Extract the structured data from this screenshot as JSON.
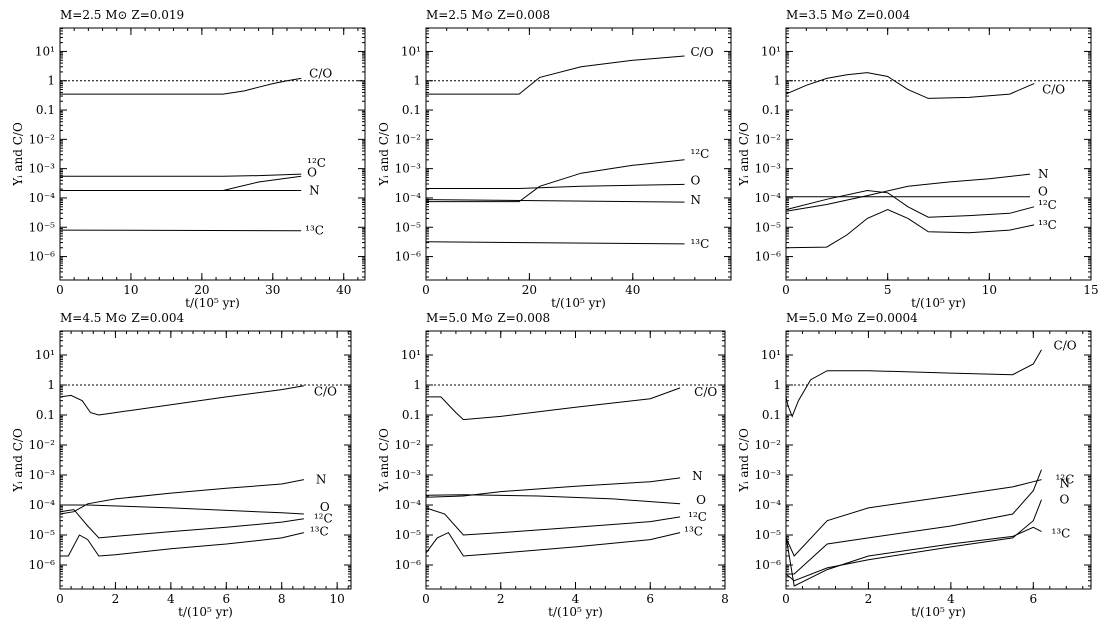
{
  "chart_data": [
    {
      "type": "line",
      "title": "M=2.5 M⊙  Z=0.019",
      "xlabel": "t/(10⁵ yr)",
      "ylabel": "Yᵢ and C/O",
      "xlim": [
        0,
        43
      ],
      "ylim_log10": [
        -6.8,
        1.8
      ],
      "yscale": "log",
      "xticks": [
        0,
        10,
        20,
        30,
        40
      ],
      "reference_line": {
        "y": 1,
        "style": "dotted"
      },
      "series": [
        {
          "name": "C/O",
          "x": [
            0,
            23,
            26,
            28,
            30,
            32,
            34
          ],
          "y": [
            0.35,
            0.35,
            0.45,
            0.6,
            0.8,
            1.0,
            1.2
          ]
        },
        {
          "name": "¹²C",
          "x": [
            0,
            23,
            28,
            34
          ],
          "y": [
            0.00055,
            0.00055,
            0.00058,
            0.00065
          ]
        },
        {
          "name": "O",
          "x": [
            0,
            23,
            28,
            34
          ],
          "y": [
            0.00018,
            0.00018,
            0.00035,
            0.00055
          ]
        },
        {
          "name": "N",
          "x": [
            0,
            34
          ],
          "y": [
            0.00018,
            0.00018
          ]
        },
        {
          "name": "¹³C",
          "x": [
            0,
            34
          ],
          "y": [
            8e-06,
            7.6e-06
          ]
        }
      ]
    },
    {
      "type": "line",
      "title": "M=2.5 M⊙  Z=0.008",
      "xlabel": "t/(10⁵ yr)",
      "ylabel": "Yᵢ and C/O",
      "xlim": [
        0,
        59
      ],
      "ylim_log10": [
        -6.8,
        1.8
      ],
      "yscale": "log",
      "xticks": [
        0,
        20,
        40
      ],
      "reference_line": {
        "y": 1,
        "style": "dotted"
      },
      "series": [
        {
          "name": "C/O",
          "x": [
            0,
            18,
            22,
            30,
            40,
            50
          ],
          "y": [
            0.35,
            0.35,
            1.3,
            3.0,
            5.0,
            7.0
          ]
        },
        {
          "name": "¹²C",
          "x": [
            0,
            18,
            22,
            30,
            40,
            50
          ],
          "y": [
            7.5e-05,
            7.5e-05,
            0.00025,
            0.0007,
            0.0013,
            0.002
          ]
        },
        {
          "name": "O",
          "x": [
            0,
            18,
            30,
            50
          ],
          "y": [
            0.00021,
            0.00021,
            0.00025,
            0.00029
          ]
        },
        {
          "name": "N",
          "x": [
            0,
            50
          ],
          "y": [
            8.8e-05,
            7.2e-05
          ]
        },
        {
          "name": "¹³C",
          "x": [
            0,
            50
          ],
          "y": [
            3.2e-06,
            2.7e-06
          ]
        }
      ]
    },
    {
      "type": "line",
      "title": "M=3.5 M⊙  Z=0.004",
      "xlabel": "t/(10⁵ yr)",
      "ylabel": "Yᵢ and C/O",
      "xlim": [
        0,
        15
      ],
      "ylim_log10": [
        -6.8,
        1.8
      ],
      "yscale": "log",
      "xticks": [
        0,
        5,
        10,
        15
      ],
      "reference_line": {
        "y": 1,
        "style": "dotted"
      },
      "series": [
        {
          "name": "C/O",
          "x": [
            0,
            1,
            2,
            3,
            4,
            5,
            6,
            7,
            9,
            11,
            12.2
          ],
          "y": [
            0.35,
            0.7,
            1.2,
            1.6,
            1.9,
            1.4,
            0.5,
            0.25,
            0.27,
            0.35,
            0.8
          ]
        },
        {
          "name": "N",
          "x": [
            0,
            2,
            4,
            6,
            8,
            10,
            12
          ],
          "y": [
            3.5e-05,
            6e-05,
            0.00012,
            0.00025,
            0.00035,
            0.00045,
            0.00065
          ]
        },
        {
          "name": "O",
          "x": [
            0,
            12
          ],
          "y": [
            0.00011,
            0.00011
          ]
        },
        {
          "name": "¹²C",
          "x": [
            0,
            2,
            4,
            5,
            6,
            7,
            9,
            11,
            12.2
          ],
          "y": [
            4e-05,
            9e-05,
            0.00018,
            0.00015,
            5e-05,
            2.2e-05,
            2.5e-05,
            3e-05,
            5e-05
          ]
        },
        {
          "name": "¹³C",
          "x": [
            0,
            2,
            3,
            4,
            5,
            6,
            7,
            9,
            11,
            12.2
          ],
          "y": [
            2e-06,
            2.1e-06,
            5.5e-06,
            2e-05,
            4e-05,
            2e-05,
            7e-06,
            6.5e-06,
            8e-06,
            1.2e-05
          ]
        }
      ]
    },
    {
      "type": "line",
      "title": "M=4.5 M⊙  Z=0.004",
      "xlabel": "t/(10⁵ yr)",
      "ylabel": "Yᵢ and C/O",
      "xlim": [
        0,
        10.5
      ],
      "ylim_log10": [
        -6.8,
        1.8
      ],
      "yscale": "log",
      "xticks": [
        0,
        2,
        4,
        6,
        8,
        10
      ],
      "reference_line": {
        "y": 1,
        "style": "dotted"
      },
      "series": [
        {
          "name": "C/O",
          "x": [
            0,
            0.4,
            0.8,
            1.1,
            1.4,
            2,
            4,
            6,
            8,
            8.8
          ],
          "y": [
            0.4,
            0.45,
            0.3,
            0.12,
            0.1,
            0.12,
            0.22,
            0.4,
            0.7,
            0.95
          ]
        },
        {
          "name": "N",
          "x": [
            0,
            0.5,
            1,
            2,
            4,
            6,
            8,
            8.8
          ],
          "y": [
            5e-05,
            6e-05,
            0.00011,
            0.00016,
            0.00025,
            0.00036,
            0.0005,
            0.0007
          ]
        },
        {
          "name": "O",
          "x": [
            0,
            1,
            4,
            8,
            8.8
          ],
          "y": [
            0.0001,
            0.0001,
            8e-05,
            5.5e-05,
            5e-05
          ]
        },
        {
          "name": "¹²C",
          "x": [
            0,
            0.5,
            1,
            1.4,
            2,
            4,
            6,
            8,
            8.8
          ],
          "y": [
            6e-05,
            7e-05,
            2e-05,
            8e-06,
            9e-06,
            1.3e-05,
            1.8e-05,
            2.7e-05,
            3.5e-05
          ]
        },
        {
          "name": "¹³C",
          "x": [
            0,
            0.3,
            0.7,
            1,
            1.4,
            2,
            4,
            6,
            8,
            8.8
          ],
          "y": [
            2e-06,
            2e-06,
            1e-05,
            7e-06,
            2e-06,
            2.2e-06,
            3.5e-06,
            5e-06,
            8e-06,
            1.2e-05
          ]
        }
      ]
    },
    {
      "type": "line",
      "title": "M=5.0 M⊙  Z=0.008",
      "xlabel": "t/(10⁵ yr)",
      "ylabel": "Yᵢ and C/O",
      "xlim": [
        0,
        8
      ],
      "ylim_log10": [
        -6.8,
        1.8
      ],
      "yscale": "log",
      "xticks": [
        0,
        2,
        4,
        6,
        8
      ],
      "reference_line": {
        "y": 1,
        "style": "dotted"
      },
      "series": [
        {
          "name": "C/O",
          "x": [
            0,
            0.4,
            0.8,
            1,
            2,
            4,
            6,
            6.8
          ],
          "y": [
            0.4,
            0.4,
            0.12,
            0.07,
            0.09,
            0.18,
            0.35,
            0.8
          ]
        },
        {
          "name": "N",
          "x": [
            0,
            1,
            2,
            4,
            6,
            6.8
          ],
          "y": [
            0.00018,
            0.0002,
            0.00028,
            0.00042,
            0.0006,
            0.0008
          ]
        },
        {
          "name": "O",
          "x": [
            0,
            1,
            3,
            5,
            6.8
          ],
          "y": [
            0.00021,
            0.00022,
            0.0002,
            0.00016,
            0.00011
          ]
        },
        {
          "name": "¹²C",
          "x": [
            0,
            0.5,
            1,
            2,
            4,
            6,
            6.8
          ],
          "y": [
            8e-05,
            5e-05,
            1e-05,
            1.2e-05,
            1.8e-05,
            2.8e-05,
            4e-05
          ]
        },
        {
          "name": "¹³C",
          "x": [
            0,
            0.3,
            0.6,
            1,
            2,
            4,
            6,
            6.8
          ],
          "y": [
            2.5e-06,
            8e-06,
            1.2e-05,
            2e-06,
            2.5e-06,
            4e-06,
            7e-06,
            1.2e-05
          ]
        }
      ]
    },
    {
      "type": "line",
      "title": "M=5.0 M⊙  Z=0.0004",
      "xlabel": "t/(10⁵ yr)",
      "ylabel": "Yᵢ and C/O",
      "xlim": [
        0,
        7.4
      ],
      "ylim_log10": [
        -6.8,
        1.8
      ],
      "yscale": "log",
      "xticks": [
        0,
        2,
        4,
        6
      ],
      "reference_line": {
        "y": 1,
        "style": "dotted"
      },
      "series": [
        {
          "name": "C/O",
          "x": [
            0,
            0.05,
            0.15,
            0.3,
            0.6,
            1,
            2,
            4,
            5.5,
            6,
            6.2
          ],
          "y": [
            0.4,
            0.2,
            0.09,
            0.3,
            1.5,
            3,
            3,
            2.5,
            2.2,
            5,
            15
          ]
        },
        {
          "name": "¹²C",
          "x": [
            0,
            0.2,
            1,
            2,
            4,
            5.5,
            6,
            6.2
          ],
          "y": [
            5e-07,
            5e-07,
            5e-06,
            8e-06,
            2e-05,
            5e-05,
            0.0003,
            0.0015
          ]
        },
        {
          "name": "N",
          "x": [
            0,
            0.2,
            1,
            2,
            4,
            5.5,
            6,
            6.2
          ],
          "y": [
            8e-06,
            2e-06,
            3e-05,
            8e-05,
            0.0002,
            0.0004,
            0.0006,
            0.0007
          ]
        },
        {
          "name": "O",
          "x": [
            0,
            0.2,
            1,
            2,
            4,
            5.5,
            6,
            6.2
          ],
          "y": [
            5e-07,
            3e-07,
            8e-07,
            1.5e-06,
            4e-06,
            8e-06,
            3e-05,
            0.00015
          ]
        },
        {
          "name": "¹³C",
          "x": [
            0,
            0.2,
            1,
            2,
            4,
            5.5,
            6,
            6.2
          ],
          "y": [
            9e-06,
            2e-07,
            7e-07,
            2e-06,
            5e-06,
            9e-06,
            1.8e-05,
            1.3e-05
          ]
        }
      ]
    }
  ]
}
